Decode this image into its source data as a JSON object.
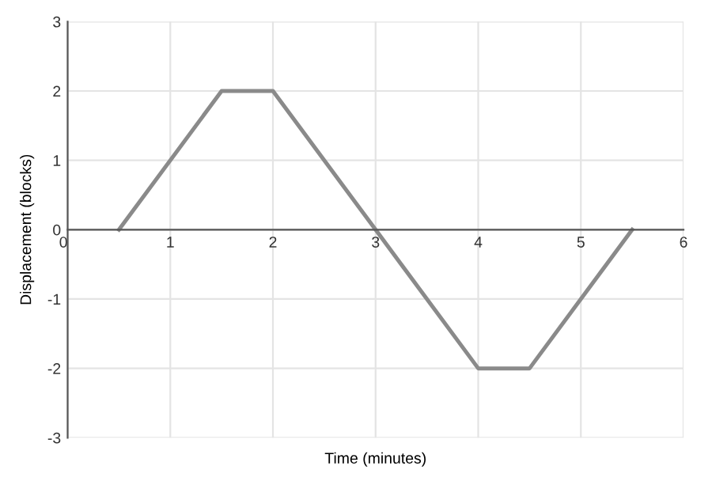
{
  "chart_data": {
    "type": "line",
    "xlabel": "Time (minutes)",
    "ylabel": "Displacement (blocks)",
    "x": [
      0.5,
      1.5,
      2,
      3,
      4,
      4.5,
      5.5
    ],
    "series": [
      {
        "color": "#8a8a8a",
        "values": [
          0,
          2,
          2,
          0,
          -2,
          -2,
          0
        ]
      }
    ],
    "xlim": [
      0,
      6
    ],
    "xticks": [
      0,
      1,
      2,
      3,
      4,
      5,
      6
    ],
    "ylim": [
      -3,
      3
    ],
    "yticks": [
      -3,
      -2,
      -1,
      0,
      1,
      2,
      3
    ],
    "grid": true,
    "marker": "none",
    "line_style": "solid",
    "legend": false
  }
}
